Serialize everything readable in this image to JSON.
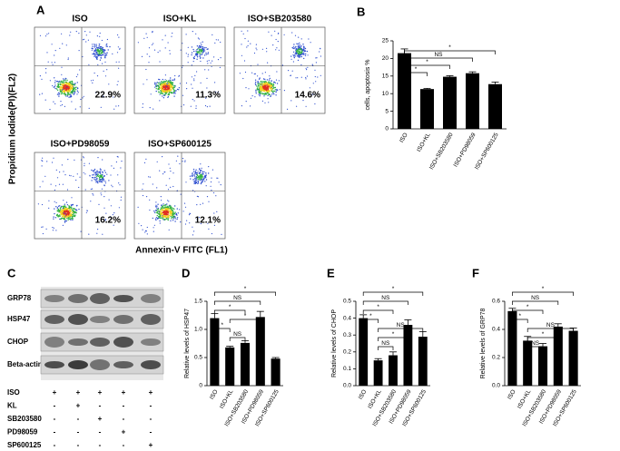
{
  "flow_panel": {
    "panel_label": "A",
    "y_label": "Propidium Iodide(PI)(FL2)",
    "x_label": "Annexin-V FITC (FL1)",
    "plots": [
      {
        "title": "ISO",
        "percent": "22.9%"
      },
      {
        "title": "ISO+KL",
        "percent": "11.3%"
      },
      {
        "title": "ISO+SB203580",
        "percent": "14.6%"
      },
      {
        "title": "ISO+PD98059",
        "percent": "16.2%"
      },
      {
        "title": "ISO+SP600125",
        "percent": "12.1%"
      }
    ]
  },
  "blot_panel": {
    "panel_label": "C",
    "bands": [
      "GRP78",
      "HSP47",
      "CHOP",
      "Beta-actin"
    ],
    "treatments": [
      {
        "name": "ISO",
        "marks": [
          "+",
          "+",
          "+",
          "+",
          "+"
        ]
      },
      {
        "name": "KL",
        "marks": [
          "-",
          "+",
          "-",
          "-",
          "-"
        ]
      },
      {
        "name": "SB203580",
        "marks": [
          "-",
          "-",
          "+",
          "-",
          "-"
        ]
      },
      {
        "name": "PD98059",
        "marks": [
          "-",
          "-",
          "-",
          "+",
          "-"
        ]
      },
      {
        "name": "SP600125",
        "marks": [
          "-",
          "-",
          "-",
          "-",
          "+"
        ]
      }
    ]
  },
  "chart_data": [
    {
      "type": "bar",
      "panel_label": "B",
      "y_label": "cells, apoptosis %",
      "categories": [
        "ISO",
        "ISO+KL",
        "ISO+SB203580",
        "ISO+PD98059",
        "ISO+SP600125"
      ],
      "values": [
        21.5,
        11.3,
        14.8,
        15.8,
        12.7
      ],
      "errors": [
        1.2,
        0.2,
        0.3,
        0.4,
        0.6
      ],
      "color": "#000000",
      "ylim": [
        0,
        25
      ],
      "yticks": [
        0,
        5,
        10,
        15,
        20,
        25
      ],
      "annotations": [
        {
          "from": 0,
          "to": 4,
          "label": "*"
        },
        {
          "from": 0,
          "to": 3,
          "label": "NS"
        },
        {
          "from": 0,
          "to": 2,
          "label": "*"
        },
        {
          "from": 0,
          "to": 1,
          "label": "*"
        }
      ]
    },
    {
      "type": "bar",
      "panel_label": "D",
      "y_label": "Relative levels of HSP47",
      "categories": [
        "ISO",
        "ISO+KL",
        "ISO+SB203580",
        "ISO+PD98059",
        "ISO+SP600125"
      ],
      "values": [
        1.2,
        0.68,
        0.76,
        1.22,
        0.48
      ],
      "errors": [
        0.08,
        0.02,
        0.04,
        0.1,
        0.02
      ],
      "color": "#000000",
      "ylim": [
        0,
        1.5
      ],
      "yticks": [
        0,
        0.5,
        {
          "value": 1,
          "label": "1.0"
        },
        1.5
      ],
      "annotations": [
        {
          "from": 0,
          "to": 4,
          "label": "*"
        },
        {
          "from": 0,
          "to": 3,
          "label": "NS"
        },
        {
          "from": 0,
          "to": 2,
          "label": "*"
        },
        {
          "from": 1,
          "to": 3,
          "label": "*"
        },
        {
          "from": 0,
          "to": 1,
          "label": "*"
        },
        {
          "from": 1,
          "to": 2,
          "label": "NS"
        }
      ]
    },
    {
      "type": "bar",
      "panel_label": "E",
      "y_label": "Relative levels of CHOP",
      "categories": [
        "ISO",
        "ISO+KL",
        "ISO+SB203580",
        "ISO+PD98059",
        "ISO+SP600125"
      ],
      "values": [
        0.4,
        0.15,
        0.18,
        0.36,
        0.29
      ],
      "errors": [
        0.02,
        0.01,
        0.02,
        0.03,
        0.03
      ],
      "color": "#000000",
      "ylim": [
        0,
        0.5
      ],
      "yticks": [
        {
          "value": 0,
          "label": "0.0"
        },
        0.1,
        0.2,
        0.3,
        0.4,
        0.5
      ],
      "annotations": [
        {
          "from": 0,
          "to": 4,
          "label": "*"
        },
        {
          "from": 0,
          "to": 3,
          "label": "NS"
        },
        {
          "from": 0,
          "to": 2,
          "label": "*"
        },
        {
          "from": 0,
          "to": 1,
          "label": "*"
        },
        {
          "from": 1,
          "to": 4,
          "label": "NS"
        },
        {
          "from": 1,
          "to": 3,
          "label": "*"
        },
        {
          "from": 1,
          "to": 2,
          "label": "NS"
        }
      ]
    },
    {
      "type": "bar",
      "panel_label": "F",
      "y_label": "Relative levels of GRP78",
      "categories": [
        "ISO",
        "ISO+KL",
        "ISO+SB203580",
        "ISO+PD98059",
        "ISO+SP600125"
      ],
      "values": [
        0.53,
        0.32,
        0.28,
        0.42,
        0.39
      ],
      "errors": [
        0.02,
        0.03,
        0.02,
        0.02,
        0.02
      ],
      "color": "#000000",
      "ylim": [
        0,
        0.6
      ],
      "yticks": [
        {
          "value": 0,
          "label": "0.0"
        },
        0.2,
        0.4,
        0.6
      ],
      "annotations": [
        {
          "from": 0,
          "to": 4,
          "label": "*"
        },
        {
          "from": 0,
          "to": 3,
          "label": "NS"
        },
        {
          "from": 0,
          "to": 2,
          "label": "*"
        },
        {
          "from": 0,
          "to": 1,
          "label": "*"
        },
        {
          "from": 1,
          "to": 4,
          "label": "NS"
        },
        {
          "from": 1,
          "to": 3,
          "label": "*"
        },
        {
          "from": 1,
          "to": 2,
          "label": "NS"
        }
      ]
    }
  ]
}
